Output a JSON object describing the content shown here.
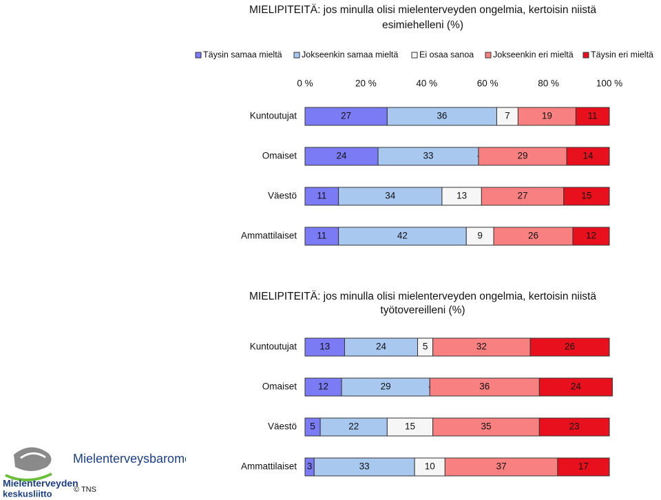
{
  "chart_data": [
    {
      "type": "stacked-barh",
      "title": [
        "MIELIPITEITÄ: jos minulla olisi mielenterveyden ongelmia, kertoisin niistä",
        "esimiehelleni (%)"
      ],
      "categories": [
        "Kuntoutujat",
        "Omaiset",
        "Väestö",
        "Ammattilaiset"
      ],
      "series": [
        {
          "name": "Täysin samaa mieltä",
          "color": "#7b7bf5",
          "values": [
            27,
            24,
            11,
            11
          ]
        },
        {
          "name": "Jokseenkin samaa mieltä",
          "color": "#a8c8f0",
          "values": [
            36,
            33,
            34,
            42
          ]
        },
        {
          "name": "Ei osaa sanoa",
          "color": "#f6f6f6",
          "values": [
            7,
            0,
            13,
            9
          ],
          "value_labels": [
            "7",
            "-",
            "13",
            "9"
          ]
        },
        {
          "name": "Jokseenkin eri mieltä",
          "color": "#f88080",
          "values": [
            19,
            29,
            27,
            26
          ]
        },
        {
          "name": "Täysin eri mieltä",
          "color": "#e8101c",
          "values": [
            11,
            14,
            15,
            12
          ]
        }
      ],
      "xlim": [
        0,
        100
      ],
      "xticks": [
        {
          "value": 0,
          "label": "0 %"
        },
        {
          "value": 20,
          "label": "20 %"
        },
        {
          "value": 40,
          "label": "40 %"
        },
        {
          "value": 60,
          "label": "60 %"
        },
        {
          "value": 80,
          "label": "80 %"
        },
        {
          "value": 100,
          "label": "100 %"
        }
      ],
      "legend": "top"
    },
    {
      "type": "stacked-barh",
      "title": [
        "MIELIPITEITÄ: jos minulla olisi mielenterveyden ongelmia, kertoisin niistä",
        "työtovereilleni (%)"
      ],
      "categories": [
        "Kuntoutujat",
        "Omaiset",
        "Väestö",
        "Ammattilaiset"
      ],
      "series": [
        {
          "name": "Täysin samaa mieltä",
          "color": "#7b7bf5",
          "values": [
            13,
            12,
            5,
            3
          ]
        },
        {
          "name": "Jokseenkin samaa mieltä",
          "color": "#a8c8f0",
          "values": [
            24,
            29,
            22,
            33
          ]
        },
        {
          "name": "Ei osaa sanoa",
          "color": "#f6f6f6",
          "values": [
            5,
            0,
            15,
            10
          ],
          "value_labels": [
            "5",
            "-",
            "15",
            "10"
          ]
        },
        {
          "name": "Jokseenkin eri mieltä",
          "color": "#f88080",
          "values": [
            32,
            36,
            35,
            37
          ]
        },
        {
          "name": "Täysin eri mieltä",
          "color": "#e8101c",
          "values": [
            26,
            24,
            23,
            17
          ]
        }
      ],
      "xlim": [
        0,
        100
      ]
    }
  ],
  "footer": {
    "barometer": "Mielenterveysbarometri",
    "logo": [
      "Mielenterveyden",
      "keskusliitto"
    ],
    "copyright": "© TNS"
  }
}
